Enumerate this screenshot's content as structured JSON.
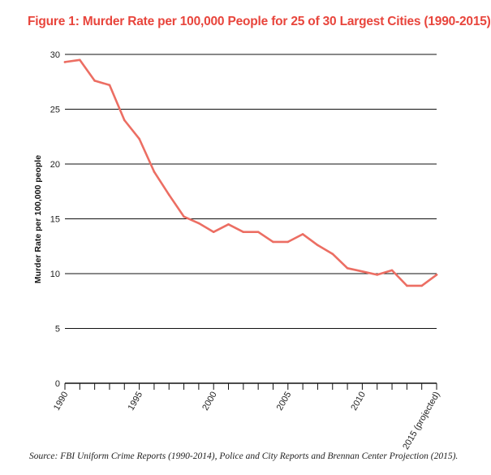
{
  "title": "Figure 1: Murder Rate per 100,000 People for 25 of 30 Largest Cities (1990-2015)",
  "source": "Source: FBI Uniform Crime Reports (1990-2014), Police and City Reports and Brennan Center Projection (2015).",
  "colors": {
    "title": "#e8453c",
    "line": "#ec6e63",
    "grid": "#111111"
  },
  "chart_data": {
    "type": "line",
    "title": "Figure 1: Murder Rate per 100,000 People for 25 of 30 Largest Cities (1990-2015)",
    "xlabel": "",
    "ylabel": "Murder Rate per 100,000 people",
    "ylim": [
      0,
      30
    ],
    "yticks": [
      0,
      5,
      10,
      15,
      20,
      25,
      30
    ],
    "xlim": [
      1990,
      2015
    ],
    "xticks": [
      1990,
      1995,
      2000,
      2005,
      2010,
      2015
    ],
    "xtick_labels": [
      "1990",
      "1995",
      "2000",
      "2005",
      "2010",
      "2015 (projected)"
    ],
    "grid": "horizontal",
    "series": [
      {
        "x": [
          1990,
          1991,
          1992,
          1993,
          1994,
          1995,
          1996,
          1997,
          1998,
          1999,
          2000,
          2001,
          2002,
          2003,
          2004,
          2005,
          2006,
          2007,
          2008,
          2009,
          2010,
          2011,
          2012,
          2013,
          2014,
          2015
        ],
        "values": [
          29.3,
          29.5,
          27.6,
          27.2,
          24.0,
          22.3,
          19.3,
          17.2,
          15.2,
          14.6,
          13.8,
          14.5,
          13.8,
          13.8,
          12.9,
          12.9,
          13.6,
          12.6,
          11.8,
          10.5,
          10.2,
          9.9,
          10.3,
          8.9,
          8.9,
          9.9
        ]
      }
    ]
  }
}
